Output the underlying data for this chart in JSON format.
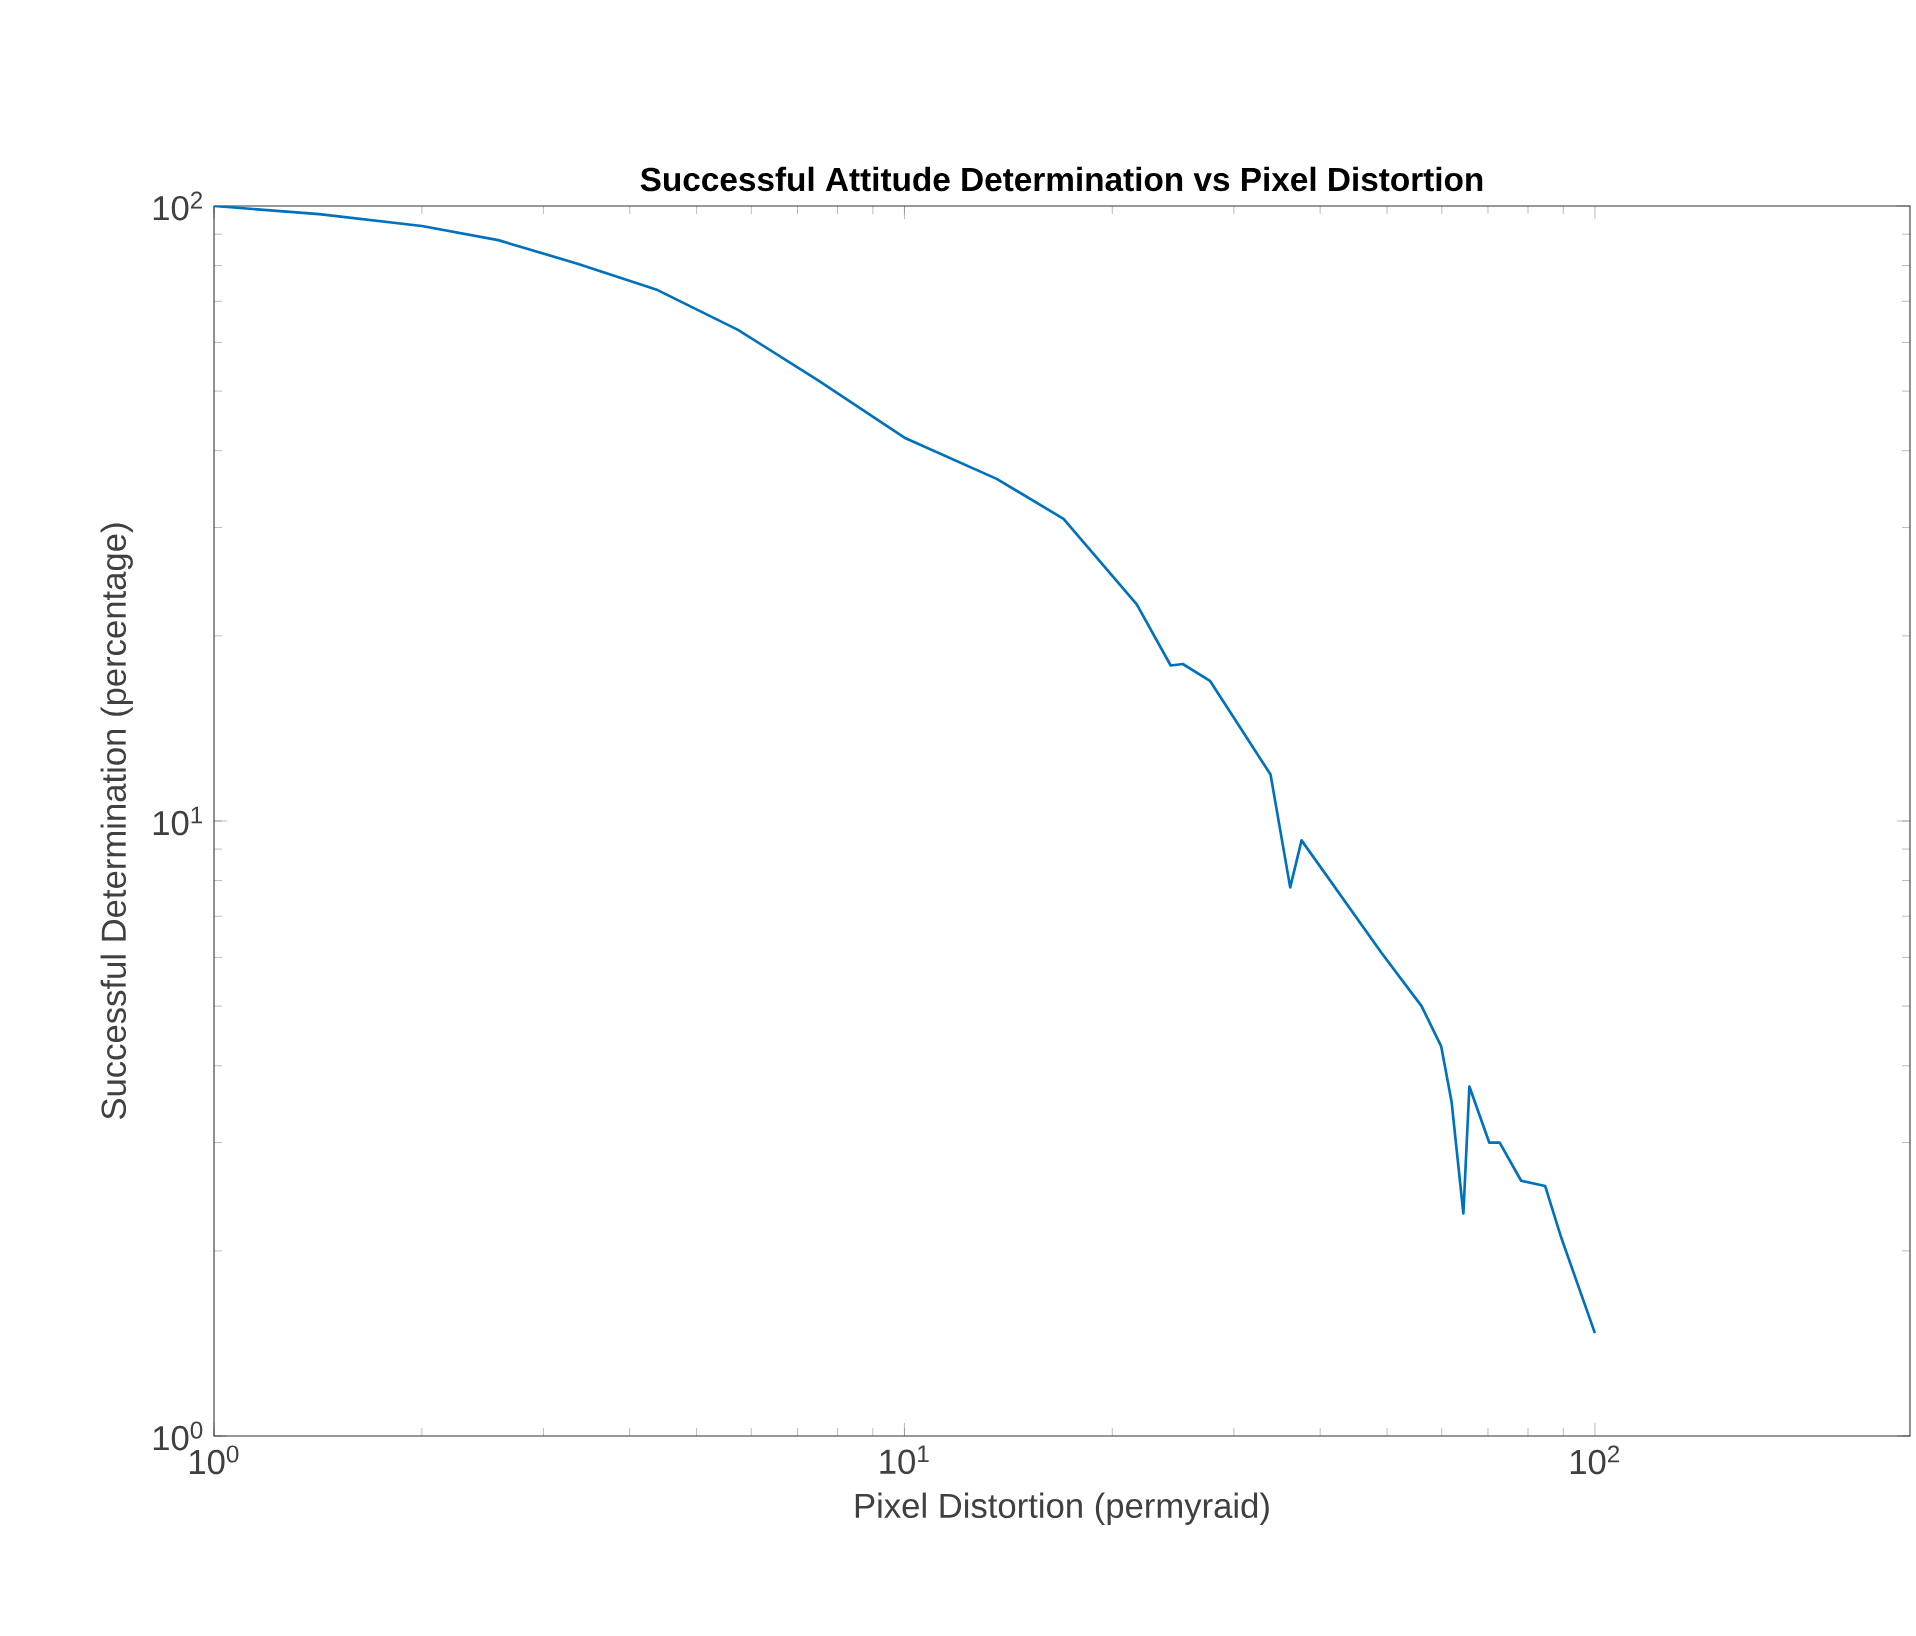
{
  "chart_data": {
    "type": "line",
    "title": "Successful Attitude Determination vs Pixel Distortion",
    "xlabel": "Pixel Distortion (permyraid)",
    "ylabel": "Successful Determination (percentage)",
    "log": "xy",
    "marker": "none",
    "line_style": "solid",
    "xlim": [
      1,
      286
    ],
    "ylim": [
      1,
      100
    ],
    "xticks": [
      {
        "value": 1,
        "label": "10$^{0}$"
      },
      {
        "value": 10,
        "label": "10$^{1}$"
      },
      {
        "value": 100,
        "label": "10$^{2}$"
      }
    ],
    "yticks": [
      {
        "value": 1,
        "label": "10$^{0}$"
      },
      {
        "value": 10,
        "label": "10$^{1}$"
      },
      {
        "value": 100,
        "label": "10$^{2}$"
      }
    ],
    "x": [
      1,
      1.42,
      2,
      2.58,
      3.37,
      4.39,
      5.74,
      7.49,
      10,
      13.6,
      17,
      21.7,
      24.3,
      25.3,
      27.7,
      33.9,
      36.2,
      37.6,
      49.1,
      56.1,
      59.9,
      62,
      64.5,
      65.8,
      70.3,
      72.8,
      78.2,
      84.7,
      89.4,
      100
    ],
    "series": [
      {
        "color": "#0072bd",
        "values": [
          100,
          97,
          92.8,
          88,
          80.5,
          73,
          62.9,
          52.1,
          42,
          36,
          31,
          22.5,
          17.9,
          18,
          16.9,
          11.9,
          7.8,
          9.3,
          6.1,
          5,
          4.3,
          3.5,
          2.3,
          3.7,
          3,
          3,
          2.6,
          2.55,
          2.1,
          1.47
        ]
      }
    ]
  }
}
